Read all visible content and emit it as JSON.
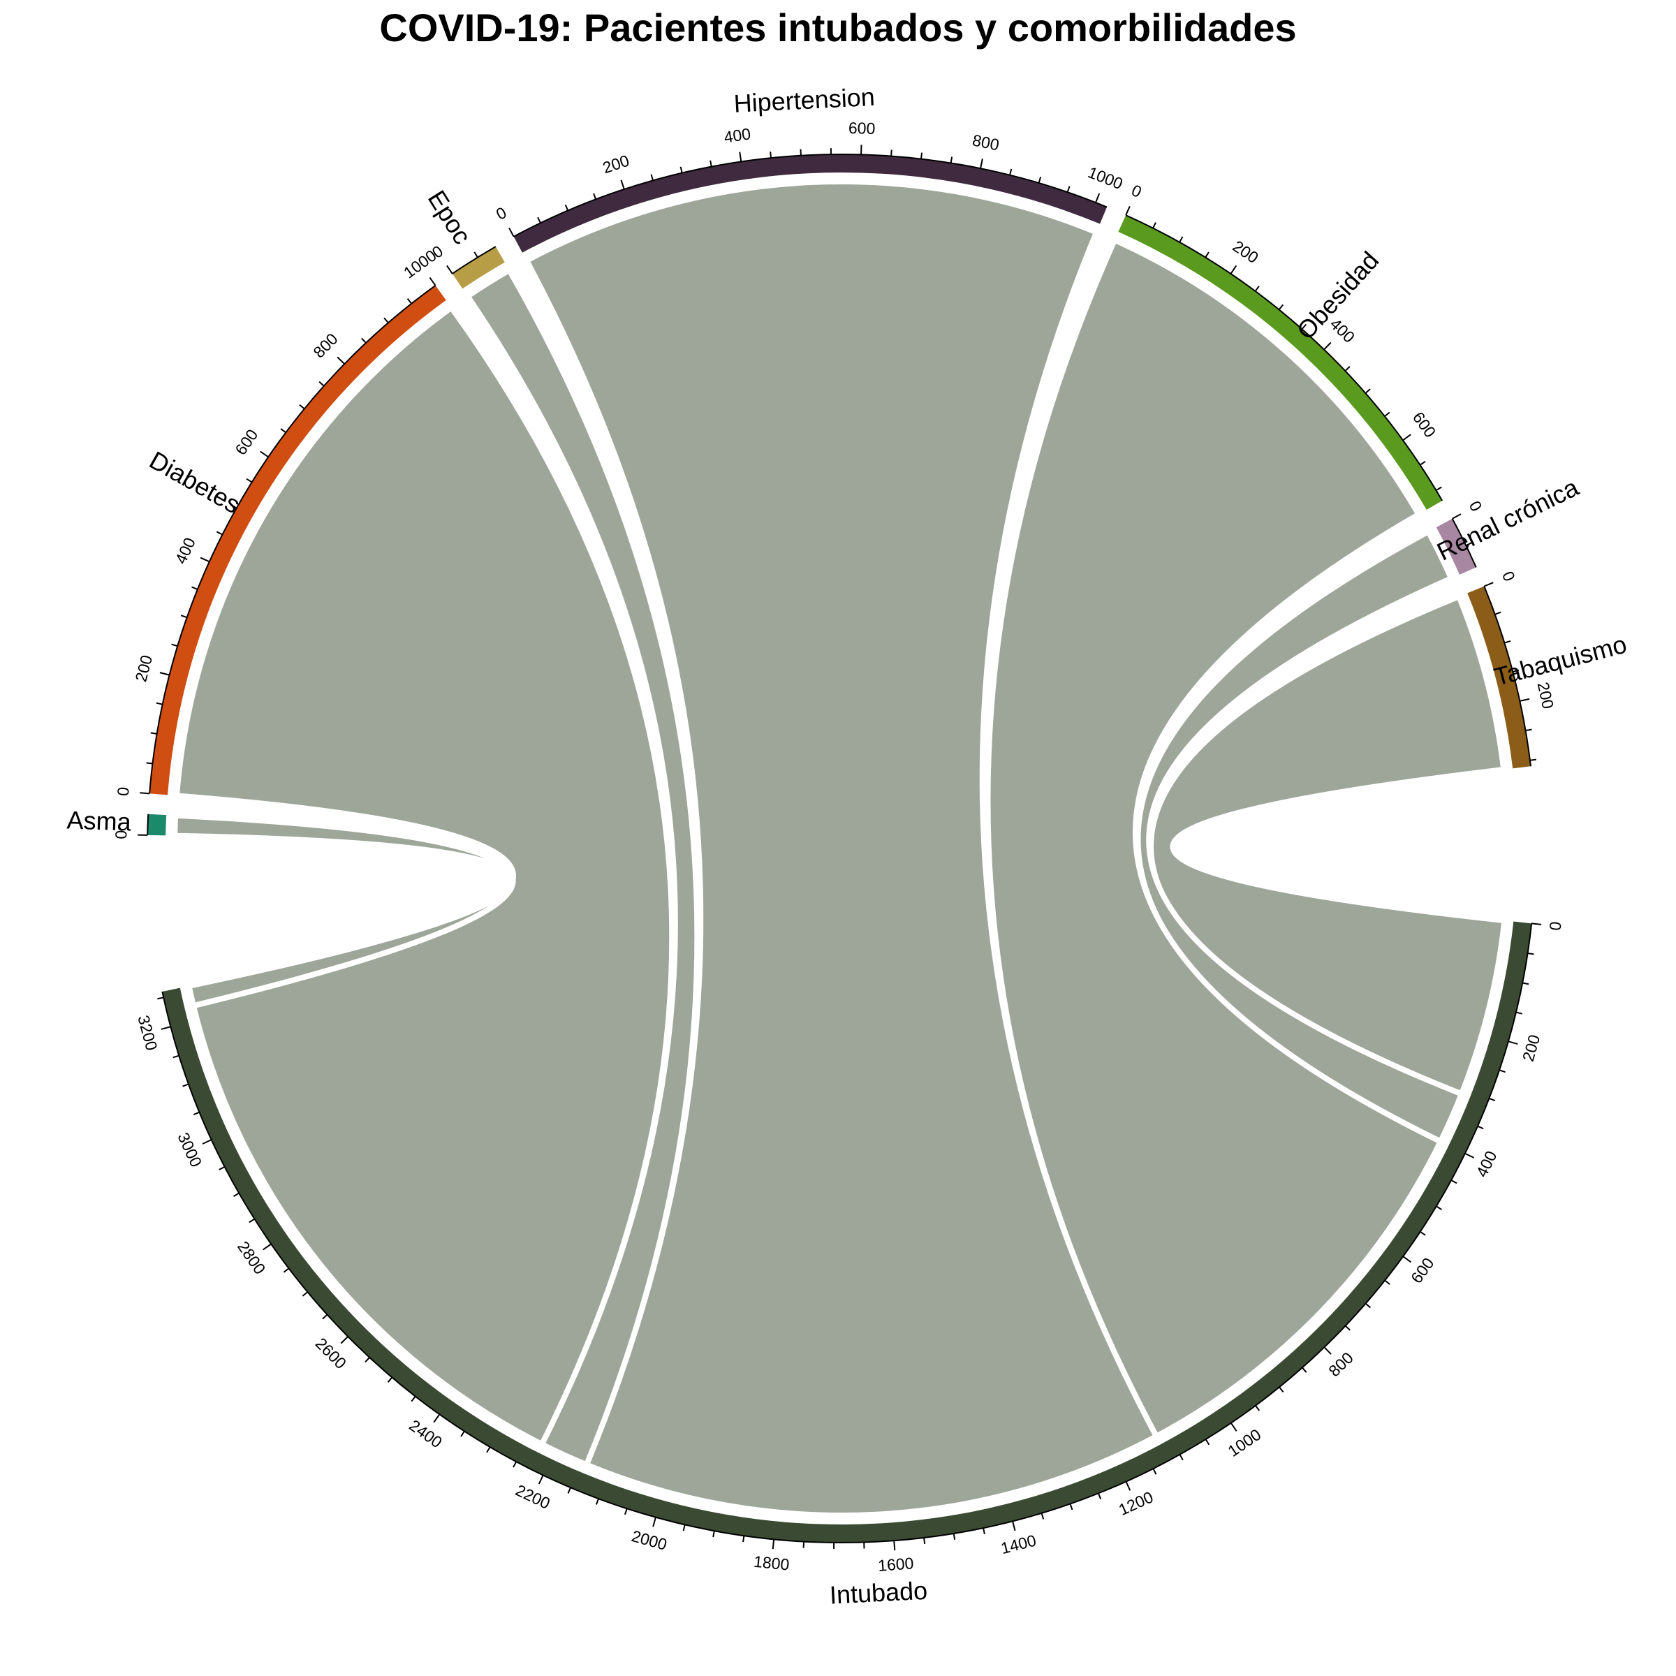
{
  "chart_data": {
    "type": "chord",
    "title": "COVID-19: Pacientes intubados y comorbilidades",
    "target": "Intubado",
    "target_total": 3260,
    "target_color": "#3b4b33",
    "chord_color": "#9ea699",
    "sectors": [
      {
        "name": "Intubado",
        "value": 3260,
        "color": "#3b4b33",
        "label_style": "bending",
        "tick_step": 50,
        "label_step": 200
      },
      {
        "name": "Asma",
        "value": 35,
        "color": "#1b8a6b",
        "label_style": "radial",
        "tick_step": 50,
        "label_step": 200
      },
      {
        "name": "Diabetes",
        "value": 1000,
        "color": "#d04e12",
        "label_style": "radial",
        "tick_step": 50,
        "label_step": 200
      },
      {
        "name": "Epoc",
        "value": 85,
        "color": "#b89d47",
        "label_style": "radial",
        "tick_step": 50,
        "label_step": 200
      },
      {
        "name": "Hipertension",
        "value": 1020,
        "color": "#3f2a40",
        "label_style": "bending",
        "tick_step": 50,
        "label_step": 200
      },
      {
        "name": "Obesidad",
        "value": 720,
        "color": "#5a9a1e",
        "label_style": "radial",
        "tick_step": 50,
        "label_step": 200
      },
      {
        "name": "Renal crónica",
        "value": 90,
        "color": "#a887a3",
        "label_style": "radial",
        "tick_step": 50,
        "label_step": 200
      },
      {
        "name": "Tabaquismo",
        "value": 310,
        "color": "#8c5d18",
        "label_style": "radial",
        "tick_step": 50,
        "label_step": 200
      }
    ],
    "links": [
      {
        "from": "Tabaquismo",
        "to": "Intubado",
        "value": 310
      },
      {
        "from": "Renal crónica",
        "to": "Intubado",
        "value": 90
      },
      {
        "from": "Obesidad",
        "to": "Intubado",
        "value": 720
      },
      {
        "from": "Hipertension",
        "to": "Intubado",
        "value": 1020
      },
      {
        "from": "Epoc",
        "to": "Intubado",
        "value": 85
      },
      {
        "from": "Diabetes",
        "to": "Intubado",
        "value": 1000
      },
      {
        "from": "Asma",
        "to": "Intubado",
        "value": 35
      }
    ]
  }
}
